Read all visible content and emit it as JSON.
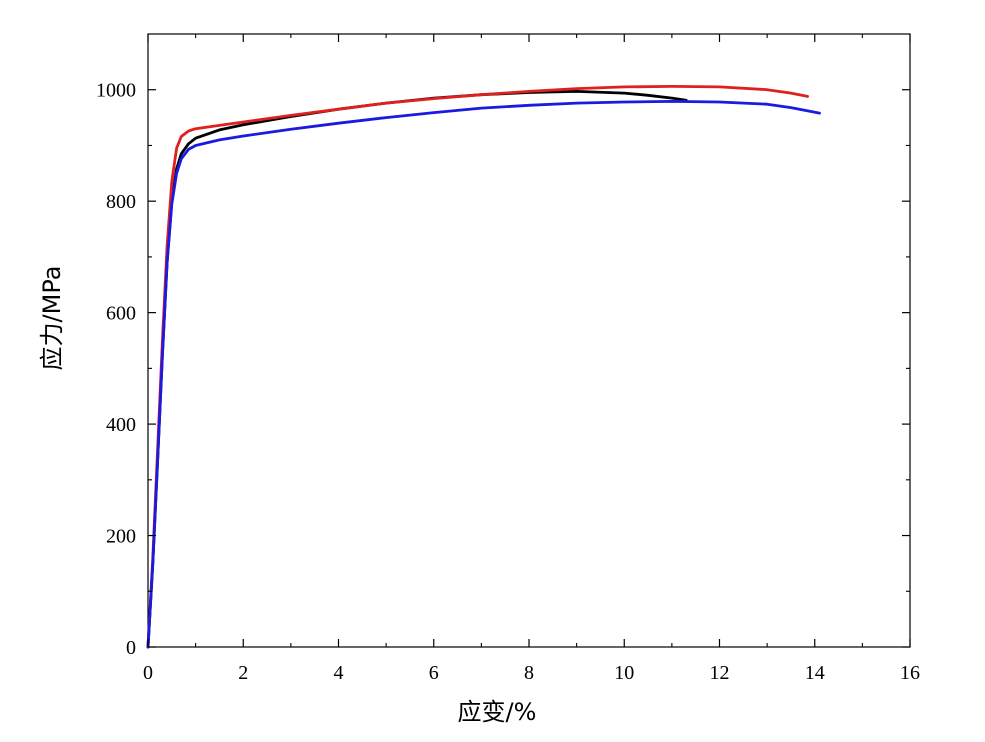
{
  "chart_data": {
    "type": "line",
    "title": "",
    "xlabel": "应变/%",
    "ylabel": "应力/MPa",
    "xlim": [
      0,
      16
    ],
    "ylim": [
      0,
      1100
    ],
    "x_ticks": [
      0,
      2,
      4,
      6,
      8,
      10,
      12,
      14,
      16
    ],
    "y_ticks": [
      0,
      200,
      400,
      600,
      800,
      1000
    ],
    "grid": false,
    "legend": "none",
    "series": [
      {
        "color": "#000000",
        "points": [
          [
            0,
            0
          ],
          [
            0.1,
            150
          ],
          [
            0.2,
            330
          ],
          [
            0.3,
            520
          ],
          [
            0.4,
            690
          ],
          [
            0.5,
            800
          ],
          [
            0.6,
            858
          ],
          [
            0.7,
            885
          ],
          [
            0.85,
            903
          ],
          [
            1.0,
            913
          ],
          [
            1.5,
            928
          ],
          [
            2,
            937
          ],
          [
            3,
            952
          ],
          [
            4,
            965
          ],
          [
            5,
            976
          ],
          [
            6,
            985
          ],
          [
            7,
            991
          ],
          [
            8,
            995
          ],
          [
            9,
            997
          ],
          [
            10,
            994
          ],
          [
            10.5,
            990
          ],
          [
            11,
            985
          ],
          [
            11.3,
            981
          ]
        ]
      },
      {
        "color": "#e02020",
        "points": [
          [
            0,
            0
          ],
          [
            0.1,
            160
          ],
          [
            0.2,
            350
          ],
          [
            0.3,
            545
          ],
          [
            0.4,
            720
          ],
          [
            0.5,
            835
          ],
          [
            0.6,
            895
          ],
          [
            0.7,
            916
          ],
          [
            0.85,
            926
          ],
          [
            1.0,
            930
          ],
          [
            1.5,
            936
          ],
          [
            2,
            942
          ],
          [
            3,
            954
          ],
          [
            4,
            965
          ],
          [
            5,
            976
          ],
          [
            6,
            984
          ],
          [
            7,
            991
          ],
          [
            8,
            997
          ],
          [
            9,
            1002
          ],
          [
            10,
            1005
          ],
          [
            11,
            1006
          ],
          [
            12,
            1005
          ],
          [
            13,
            1000
          ],
          [
            13.5,
            994
          ],
          [
            13.85,
            988
          ]
        ]
      },
      {
        "color": "#1a1ae0",
        "points": [
          [
            0,
            0
          ],
          [
            0.1,
            150
          ],
          [
            0.2,
            330
          ],
          [
            0.3,
            520
          ],
          [
            0.4,
            690
          ],
          [
            0.5,
            795
          ],
          [
            0.6,
            850
          ],
          [
            0.7,
            876
          ],
          [
            0.85,
            893
          ],
          [
            1.0,
            900
          ],
          [
            1.5,
            910
          ],
          [
            2,
            917
          ],
          [
            3,
            929
          ],
          [
            4,
            940
          ],
          [
            5,
            950
          ],
          [
            6,
            959
          ],
          [
            7,
            967
          ],
          [
            8,
            972
          ],
          [
            9,
            976
          ],
          [
            10,
            978
          ],
          [
            11,
            979
          ],
          [
            12,
            978
          ],
          [
            13,
            974
          ],
          [
            13.5,
            968
          ],
          [
            14.1,
            958
          ]
        ]
      }
    ]
  }
}
